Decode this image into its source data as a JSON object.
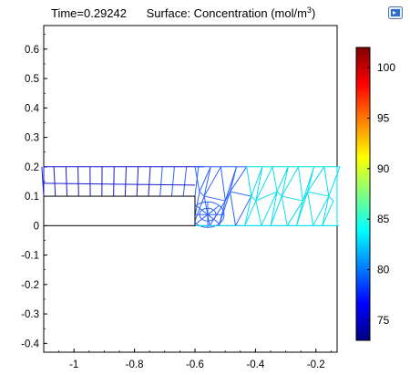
{
  "plot": {
    "time_label": "Time=0.29242",
    "surface_label": "Surface: Concentration (mol/m",
    "surface_sup": "3",
    "surface_close": ")",
    "toolbar_icon": "export-image-icon"
  },
  "chart_data": {
    "type": "heatmap",
    "x_axis": {
      "range": [
        -1.1,
        -0.13
      ],
      "ticks": [
        -1,
        -0.8,
        -0.6,
        -0.4,
        -0.2
      ],
      "tick_labels": [
        "-1",
        "-0.8",
        "-0.6",
        "-0.4",
        "-0.2"
      ]
    },
    "y_axis": {
      "range": [
        -0.43,
        0.68
      ],
      "ticks": [
        0.6,
        0.5,
        0.4,
        0.3,
        0.2,
        0.1,
        0,
        -0.1,
        -0.2,
        -0.3,
        -0.4
      ],
      "tick_labels": [
        "0.6",
        "0.5",
        "0.4",
        "0.3",
        "0.2",
        "0.1",
        "0",
        "-0.1",
        "-0.2",
        "-0.3",
        "-0.4"
      ]
    },
    "domain": {
      "x": [
        -1.1,
        -0.13
      ],
      "y": [
        0,
        0.2
      ]
    },
    "inner_block": {
      "x": [
        -1.1,
        -0.6
      ],
      "y": [
        0,
        0.1
      ]
    },
    "colorbar": {
      "range": [
        73,
        102
      ],
      "ticks": [
        100,
        95,
        90,
        85,
        80,
        75
      ],
      "tick_labels": [
        "100",
        "95",
        "90",
        "85",
        "80",
        "75"
      ],
      "colors": [
        "#000080",
        "#0000ff",
        "#0080ff",
        "#00ffff",
        "#80ff80",
        "#ffff00",
        "#ff8000",
        "#ff0000",
        "#800000"
      ]
    },
    "mesh_colors": {
      "left": "#1a1acc",
      "mid": "#2a60ff",
      "right": "#00e0f0"
    }
  }
}
